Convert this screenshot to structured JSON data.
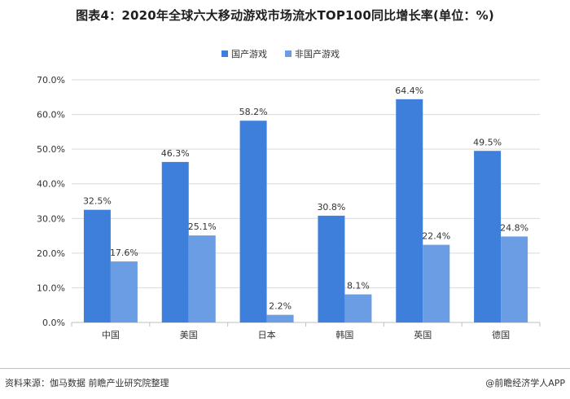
{
  "title": "图表4：2020年全球六大移动游戏市场流水TOP100同比增长率(单位：%)",
  "footer": {
    "source": "资料来源：伽马数据 前瞻产业研究院整理",
    "brand": "@前瞻经济学人APP"
  },
  "colors": {
    "domestic": "#3f7fdc",
    "foreign": "#6a9de4",
    "grid": "#d9d9d9",
    "axis": "#bfbfbf"
  },
  "chart_data": {
    "type": "bar",
    "categories": [
      "中国",
      "美国",
      "日本",
      "韩国",
      "英国",
      "德国"
    ],
    "series": [
      {
        "name": "国产游戏",
        "values": [
          32.5,
          46.3,
          58.2,
          30.8,
          64.4,
          49.5
        ]
      },
      {
        "name": "非国产游戏",
        "values": [
          17.6,
          25.1,
          2.2,
          8.1,
          22.4,
          24.8
        ]
      }
    ],
    "data_labels": [
      [
        "32.5%",
        "46.3%",
        "58.2%",
        "30.8%",
        "64.4%",
        "49.5%"
      ],
      [
        "17.6%",
        "25.1%",
        "2.2%",
        "8.1%",
        "22.4%",
        "24.8%"
      ]
    ],
    "ylim": [
      0,
      70
    ],
    "yticks": [
      "0.0%",
      "10.0%",
      "20.0%",
      "30.0%",
      "40.0%",
      "50.0%",
      "60.0%",
      "70.0%"
    ],
    "ytick_values": [
      0,
      10,
      20,
      30,
      40,
      50,
      60,
      70
    ],
    "grid": true,
    "legend_position": "top-center"
  }
}
